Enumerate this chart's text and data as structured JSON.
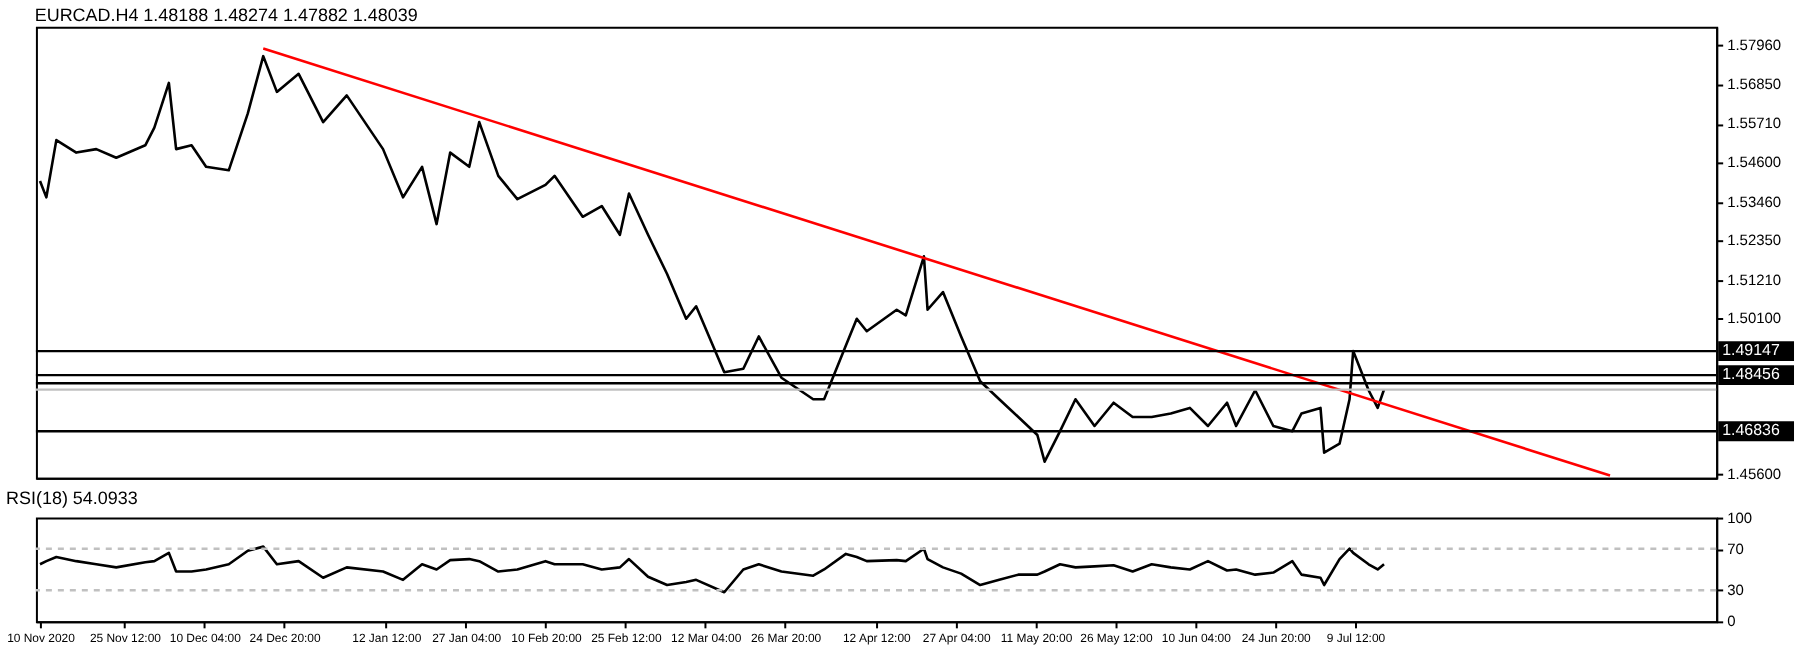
{
  "chart_data": [
    {
      "type": "line",
      "title": "EURCAD.H4  1.48188 1.48274 1.47882 1.48039",
      "xlim": [
        "2020-11-09T06:00",
        "2021-09-13T20:00"
      ],
      "ylim": [
        1.455,
        1.585
      ],
      "yticks": [
        {
          "value": 1.5796,
          "label": "1.57960"
        },
        {
          "value": 1.5685,
          "label": "1.56850"
        },
        {
          "value": 1.5571,
          "label": "1.55710"
        },
        {
          "value": 1.546,
          "label": "1.54600"
        },
        {
          "value": 1.5346,
          "label": "1.53460"
        },
        {
          "value": 1.5235,
          "label": "1.52350"
        },
        {
          "value": 1.5121,
          "label": "1.51210"
        },
        {
          "value": 1.501,
          "label": "1.50100"
        },
        {
          "value": 1.456,
          "label": "1.45600"
        }
      ],
      "tick_labels": "y",
      "grid": false,
      "line_style": "solid",
      "x": [
        "2020-11-10T00:00",
        "2020-11-11T04:00",
        "2020-11-13T00:00",
        "2020-11-16T16:00",
        "2020-11-20T08:00",
        "2020-11-24T00:00",
        "2020-11-29T08:00",
        "2020-12-01T00:00",
        "2020-12-03T16:00",
        "2020-12-05T00:00",
        "2020-12-07T20:00",
        "2020-12-10T12:00",
        "2020-12-14T16:00",
        "2020-12-18T04:00",
        "2020-12-21T00:00",
        "2020-12-23T12:00",
        "2020-12-27T12:00",
        "2021-01-01T00:00",
        "2021-01-05T08:00",
        "2021-01-12T00:00",
        "2021-01-15T16:00",
        "2021-01-19T04:00",
        "2021-01-21T20:00",
        "2021-01-24T08:00",
        "2021-01-27T20:00",
        "2021-01-29T16:00",
        "2021-02-02T04:00",
        "2021-02-05T16:00",
        "2021-02-10T20:00",
        "2021-02-12T12:00",
        "2021-02-17T16:00",
        "2021-02-21T04:00",
        "2021-02-24T12:00",
        "2021-02-26T04:00",
        "2021-03-01T16:00",
        "2021-03-05T04:00",
        "2021-03-08T16:00",
        "2021-03-10T12:00",
        "2021-03-15T16:00",
        "2021-03-19T04:00",
        "2021-03-22T00:00",
        "2021-03-26T04:00",
        "2021-04-01T00:00",
        "2021-04-03T00:00",
        "2021-04-07T00:00",
        "2021-04-09T00:00",
        "2021-04-10T20:00",
        "2021-04-16T08:00",
        "2021-04-18T00:00",
        "2021-04-21T08:00",
        "2021-04-22T00:00",
        "2021-04-24T20:00",
        "2021-04-28T04:00",
        "2021-05-01T16:00",
        "2021-05-05T04:00",
        "2021-05-08T16:00",
        "2021-05-12T04:00",
        "2021-05-13T12:00",
        "2021-05-16T08:00",
        "2021-05-19T04:00",
        "2021-05-22T16:00",
        "2021-05-26T04:00",
        "2021-05-29T16:00",
        "2021-06-02T04:00",
        "2021-06-05T16:00",
        "2021-06-09T04:00",
        "2021-06-12T12:00",
        "2021-06-16T00:00",
        "2021-06-17T16:00",
        "2021-06-21T04:00",
        "2021-06-24T12:00",
        "2021-06-28T00:00",
        "2021-06-29T16:00",
        "2021-07-03T04:00",
        "2021-07-03T20:00",
        "2021-07-06T16:00",
        "2021-07-08T12:00",
        "2021-07-09T04:00",
        "2021-07-12T00:00",
        "2021-07-13T16:00",
        "2021-07-14T20:00"
      ],
      "series": [
        {
          "color": "#000000",
          "values": [
            1.5405,
            1.5358,
            1.5523,
            1.5487,
            1.5497,
            1.5472,
            1.5508,
            1.5559,
            1.5688,
            1.5497,
            1.5508,
            1.5446,
            1.5436,
            1.56,
            1.5765,
            1.5662,
            1.5714,
            1.5575,
            1.5652,
            1.5497,
            1.5358,
            1.5446,
            1.5281,
            1.5487,
            1.5446,
            1.5575,
            1.542,
            1.5353,
            1.5394,
            1.542,
            1.5302,
            1.5333,
            1.525,
            1.5369,
            1.525,
            1.5137,
            1.5008,
            1.5044,
            1.4854,
            1.4864,
            1.4957,
            1.4838,
            1.4776,
            1.4776,
            1.4931,
            1.5008,
            1.4972,
            1.5034,
            1.5018,
            1.5188,
            1.5034,
            1.5085,
            1.4957,
            1.4828,
            1.4776,
            1.4725,
            1.4673,
            1.4596,
            1.4684,
            1.4776,
            1.4699,
            1.4766,
            1.4725,
            1.4725,
            1.4735,
            1.4751,
            1.4699,
            1.4766,
            1.4699,
            1.4802,
            1.4699,
            1.4684,
            1.4735,
            1.4751,
            1.4622,
            1.4648,
            1.4776,
            1.4915,
            1.4802,
            1.4751,
            1.4804
          ]
        },
        {
          "color": "#ff0000",
          "x": [
            "2020-12-21T00:00",
            "2021-08-25T08:00"
          ],
          "values": [
            1.5787,
            1.4556
          ]
        }
      ],
      "ref_lines": [
        {
          "axis": "y",
          "value": 1.49147,
          "label": "1.49147",
          "color": "#000000"
        },
        {
          "axis": "y",
          "value": 1.48456,
          "label": "1.48456",
          "color": "#000000"
        },
        {
          "axis": "y",
          "value": 1.4822,
          "label": null,
          "color": "#000000"
        },
        {
          "axis": "y",
          "value": 1.48039,
          "label": null,
          "color": "#c0c0c0"
        },
        {
          "axis": "y",
          "value": 1.46836,
          "label": "1.46836",
          "color": "#000000"
        }
      ]
    },
    {
      "type": "line",
      "title": "RSI(18) 54.0933",
      "xlim": [
        "2020-11-09T06:00",
        "2021-09-13T20:00"
      ],
      "ylim": [
        0,
        100
      ],
      "yticks": [
        0,
        30,
        70,
        100
      ],
      "xticks": [
        {
          "value": "2020-11-10T00:00",
          "label": "10 Nov 2020"
        },
        {
          "value": "2020-11-25T12:00",
          "label": "25 Nov 12:00"
        },
        {
          "value": "2020-12-10T04:00",
          "label": "10 Dec 04:00"
        },
        {
          "value": "2020-12-24T20:00",
          "label": "24 Dec 20:00"
        },
        {
          "value": "2021-01-12T12:00",
          "label": "12 Jan 12:00"
        },
        {
          "value": "2021-01-27T04:00",
          "label": "27 Jan 04:00"
        },
        {
          "value": "2021-02-10T20:00",
          "label": "10 Feb 20:00"
        },
        {
          "value": "2021-02-25T12:00",
          "label": "25 Feb 12:00"
        },
        {
          "value": "2021-03-12T04:00",
          "label": "12 Mar 04:00"
        },
        {
          "value": "2021-03-26T20:00",
          "label": "26 Mar 20:00"
        },
        {
          "value": "2021-04-12T12:00",
          "label": "12 Apr 12:00"
        },
        {
          "value": "2021-04-27T04:00",
          "label": "27 Apr 04:00"
        },
        {
          "value": "2021-05-11T20:00",
          "label": "11 May 20:00"
        },
        {
          "value": "2021-05-26T12:00",
          "label": "26 May 12:00"
        },
        {
          "value": "2021-06-10T04:00",
          "label": "10 Jun 04:00"
        },
        {
          "value": "2021-06-24T20:00",
          "label": "24 Jun 20:00"
        },
        {
          "value": "2021-07-09T12:00",
          "label": "9 Jul 12:00"
        }
      ],
      "grid": false,
      "line_style": "solid",
      "x": [
        "2020-11-10T00:00",
        "2020-11-11T04:00",
        "2020-11-13T00:00",
        "2020-11-16T16:00",
        "2020-11-20T08:00",
        "2020-11-24T00:00",
        "2020-11-29T08:00",
        "2020-12-01T00:00",
        "2020-12-03T16:00",
        "2020-12-05T00:00",
        "2020-12-07T20:00",
        "2020-12-10T12:00",
        "2020-12-14T16:00",
        "2020-12-18T04:00",
        "2020-12-21T00:00",
        "2020-12-23T12:00",
        "2020-12-27T12:00",
        "2021-01-01T00:00",
        "2021-01-05T08:00",
        "2021-01-12T00:00",
        "2021-01-15T16:00",
        "2021-01-19T04:00",
        "2021-01-21T20:00",
        "2021-01-24T08:00",
        "2021-01-27T20:00",
        "2021-01-29T16:00",
        "2021-02-02T04:00",
        "2021-02-05T16:00",
        "2021-02-10T20:00",
        "2021-02-12T12:00",
        "2021-02-17T16:00",
        "2021-02-21T04:00",
        "2021-02-24T12:00",
        "2021-02-26T04:00",
        "2021-03-01T16:00",
        "2021-03-05T04:00",
        "2021-03-08T16:00",
        "2021-03-10T12:00",
        "2021-03-15T16:00",
        "2021-03-19T04:00",
        "2021-03-22T00:00",
        "2021-03-26T04:00",
        "2021-04-01T00:00",
        "2021-04-03T00:00",
        "2021-04-07T00:00",
        "2021-04-09T00:00",
        "2021-04-10T20:00",
        "2021-04-16T08:00",
        "2021-04-18T00:00",
        "2021-04-21T08:00",
        "2021-04-22T00:00",
        "2021-04-24T20:00",
        "2021-04-28T04:00",
        "2021-05-01T16:00",
        "2021-05-05T04:00",
        "2021-05-08T16:00",
        "2021-05-12T04:00",
        "2021-05-13T12:00",
        "2021-05-16T08:00",
        "2021-05-19T04:00",
        "2021-05-22T16:00",
        "2021-05-26T04:00",
        "2021-05-29T16:00",
        "2021-06-02T04:00",
        "2021-06-05T16:00",
        "2021-06-09T04:00",
        "2021-06-12T12:00",
        "2021-06-16T00:00",
        "2021-06-17T16:00",
        "2021-06-21T04:00",
        "2021-06-24T12:00",
        "2021-06-28T00:00",
        "2021-06-29T16:00",
        "2021-07-03T04:00",
        "2021-07-03T20:00",
        "2021-07-06T16:00",
        "2021-07-08T12:00",
        "2021-07-09T04:00",
        "2021-07-12T00:00",
        "2021-07-13T16:00",
        "2021-07-14T20:00"
      ],
      "series": [
        {
          "color": "#000000",
          "values": [
            55,
            58,
            62,
            58,
            55,
            52,
            57,
            58,
            66,
            48,
            48,
            50,
            55,
            68,
            72,
            55,
            58,
            42,
            52,
            48,
            40,
            55,
            50,
            59,
            60,
            58,
            48,
            50,
            58,
            55,
            55,
            50,
            52,
            60,
            43,
            35,
            38,
            40,
            28,
            50,
            55,
            48,
            44,
            50,
            65,
            62,
            58,
            59,
            58,
            70,
            60,
            52,
            46,
            35,
            40,
            45,
            45,
            48,
            55,
            52,
            53,
            54,
            48,
            55,
            52,
            50,
            58,
            49,
            50,
            45,
            47,
            58,
            45,
            42,
            35,
            60,
            70,
            66,
            55,
            50,
            55
          ]
        }
      ],
      "ref_lines": [
        {
          "axis": "y",
          "value": 70,
          "color": "#c0c0c0",
          "line_style": "dashed"
        },
        {
          "axis": "y",
          "value": 30,
          "color": "#c0c0c0",
          "line_style": "dashed"
        }
      ]
    }
  ]
}
